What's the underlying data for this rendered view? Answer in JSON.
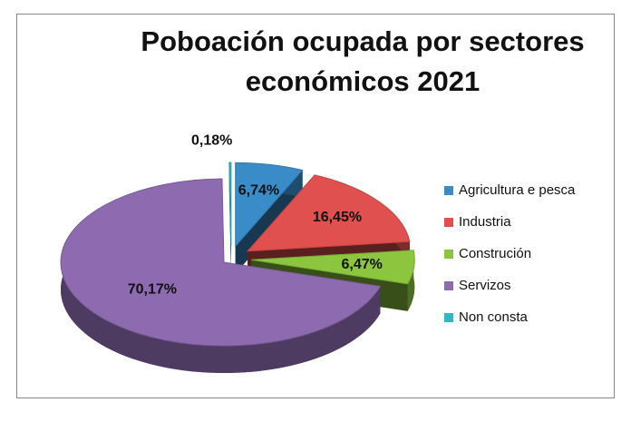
{
  "chart_data": {
    "type": "pie",
    "title": "Poboación ocupada por sectores económicos 2021",
    "categories": [
      "Agricultura e pesca",
      "Industria",
      "Construción",
      "Servizos",
      "Non consta"
    ],
    "values": [
      6.74,
      16.45,
      6.47,
      70.17,
      0.18
    ],
    "value_labels": [
      "6,74%",
      "16,45%",
      "6,47%",
      "70,17%",
      "0,18%"
    ],
    "colors": [
      "#3a8cc8",
      "#e0504e",
      "#8cc63f",
      "#8e6bb0",
      "#33b5c5"
    ],
    "legend": "right"
  }
}
